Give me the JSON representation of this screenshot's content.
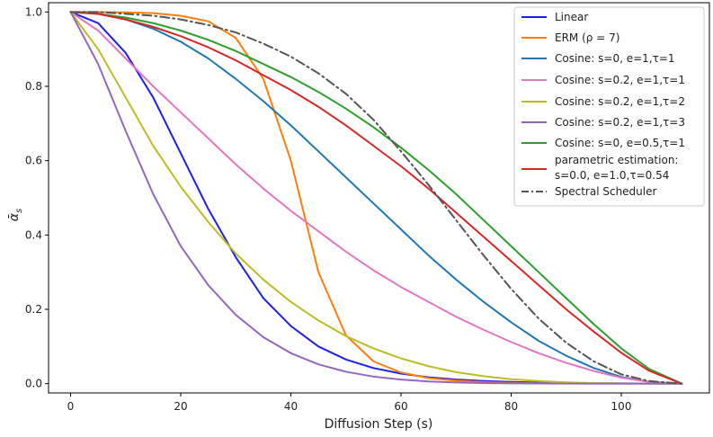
{
  "chart_data": {
    "type": "line",
    "title": "",
    "xlabel": "Diffusion Step (s)",
    "ylabel": "ᾱ",
    "ylabel_sub": "s",
    "xlim": [
      -4,
      116
    ],
    "ylim": [
      -0.025,
      1.025
    ],
    "xticks": [
      0,
      20,
      40,
      60,
      80,
      100
    ],
    "yticks": [
      0.0,
      0.2,
      0.4,
      0.6,
      0.8,
      1.0
    ],
    "xtick_labels": [
      "0",
      "20",
      "40",
      "60",
      "80",
      "100"
    ],
    "ytick_labels": [
      "0.0",
      "0.2",
      "0.4",
      "0.6",
      "0.8",
      "1.0"
    ],
    "grid": false,
    "legend_position": "top-right",
    "x": [
      0,
      5,
      10,
      15,
      20,
      25,
      30,
      35,
      40,
      45,
      50,
      55,
      60,
      65,
      70,
      75,
      80,
      85,
      90,
      95,
      100,
      105,
      111
    ],
    "series": [
      {
        "name": "Linear",
        "legend_label": "Linear",
        "color": "#1f1fe8",
        "dash": "solid",
        "values": [
          1.0,
          0.97,
          0.89,
          0.77,
          0.62,
          0.47,
          0.34,
          0.23,
          0.155,
          0.1,
          0.065,
          0.042,
          0.027,
          0.017,
          0.011,
          0.007,
          0.0045,
          0.0028,
          0.0017,
          0.001,
          0.0006,
          0.0003,
          0.0
        ]
      },
      {
        "name": "ERM (ρ=7)",
        "legend_label": "ERM (ρ = 7)",
        "color": "#ff7f0e",
        "dash": "solid",
        "values": [
          1.0,
          1.0,
          0.999,
          0.997,
          0.99,
          0.975,
          0.93,
          0.82,
          0.6,
          0.3,
          0.13,
          0.06,
          0.03,
          0.015,
          0.008,
          0.004,
          0.002,
          0.001,
          0.0006,
          0.0003,
          0.0001,
          0.0,
          0.0
        ]
      },
      {
        "name": "Cosine: s=0, e=1,τ=1",
        "legend_label": "Cosine: s=0, e=1,τ=1",
        "color": "#1f77b4",
        "dash": "solid",
        "values": [
          1.0,
          0.995,
          0.98,
          0.955,
          0.92,
          0.875,
          0.82,
          0.76,
          0.695,
          0.625,
          0.555,
          0.485,
          0.415,
          0.345,
          0.28,
          0.22,
          0.165,
          0.115,
          0.075,
          0.042,
          0.018,
          0.005,
          0.0
        ]
      },
      {
        "name": "Cosine: s=0.2, e=1,τ=1",
        "legend_label": "Cosine: s=0.2, e=1,τ=1",
        "color": "#e377c2",
        "dash": "solid",
        "values": [
          1.0,
          0.95,
          0.875,
          0.8,
          0.73,
          0.66,
          0.59,
          0.525,
          0.465,
          0.41,
          0.355,
          0.305,
          0.26,
          0.22,
          0.18,
          0.145,
          0.112,
          0.082,
          0.056,
          0.034,
          0.016,
          0.005,
          0.0
        ]
      },
      {
        "name": "Cosine: s=0.2, e=1,τ=2",
        "legend_label": "Cosine: s=0.2, e=1,τ=2",
        "color": "#bcbd22",
        "dash": "solid",
        "values": [
          1.0,
          0.9,
          0.77,
          0.64,
          0.53,
          0.435,
          0.35,
          0.28,
          0.22,
          0.17,
          0.128,
          0.095,
          0.068,
          0.047,
          0.031,
          0.02,
          0.012,
          0.007,
          0.0035,
          0.0016,
          0.0006,
          0.0001,
          0.0
        ]
      },
      {
        "name": "Cosine: s=0.2, e=1,τ=3",
        "legend_label": "Cosine: s=0.2, e=1,τ=3",
        "color": "#9467bd",
        "dash": "solid",
        "values": [
          1.0,
          0.86,
          0.68,
          0.51,
          0.37,
          0.265,
          0.185,
          0.125,
          0.082,
          0.052,
          0.032,
          0.019,
          0.011,
          0.006,
          0.0032,
          0.0016,
          0.0007,
          0.0003,
          0.0001,
          0.0,
          0.0,
          0.0,
          0.0
        ]
      },
      {
        "name": "Cosine: s=0, e=0.5,τ=1",
        "legend_label": "Cosine: s=0, e=0.5,τ=1",
        "color": "#2ca02c",
        "dash": "solid",
        "values": [
          1.0,
          0.995,
          0.985,
          0.97,
          0.95,
          0.925,
          0.895,
          0.86,
          0.825,
          0.785,
          0.74,
          0.69,
          0.635,
          0.575,
          0.51,
          0.44,
          0.37,
          0.3,
          0.23,
          0.16,
          0.095,
          0.04,
          0.0
        ]
      },
      {
        "name": "parametric estimation: s=0.0, e=1.0,τ=0.54",
        "legend_label_line1": "parametric estimation:",
        "legend_label_line2": " s=0.0, e=1.0,τ=0.54",
        "color": "#d62728",
        "dash": "solid",
        "values": [
          1.0,
          0.995,
          0.98,
          0.96,
          0.935,
          0.905,
          0.87,
          0.83,
          0.79,
          0.745,
          0.695,
          0.64,
          0.585,
          0.525,
          0.46,
          0.395,
          0.33,
          0.265,
          0.2,
          0.14,
          0.083,
          0.035,
          0.0
        ]
      },
      {
        "name": "Spectral Scheduler",
        "legend_label": "Spectral Scheduler",
        "color": "#555555",
        "dash": "dashdot",
        "values": [
          1.0,
          1.0,
          0.995,
          0.99,
          0.98,
          0.965,
          0.945,
          0.915,
          0.88,
          0.835,
          0.78,
          0.71,
          0.625,
          0.535,
          0.44,
          0.345,
          0.255,
          0.175,
          0.11,
          0.06,
          0.025,
          0.007,
          0.0
        ]
      }
    ]
  }
}
